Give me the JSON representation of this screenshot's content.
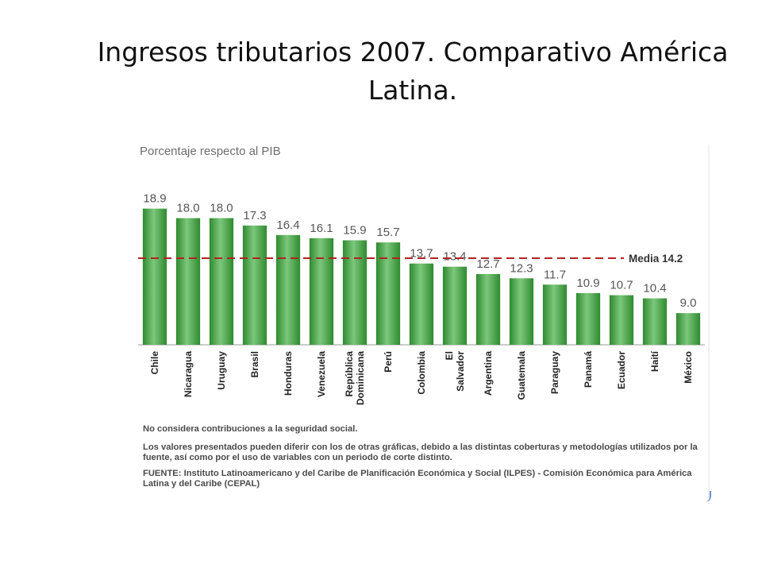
{
  "slide": {
    "title": "Ingresos tributarios 2007. Comparativo América Latina."
  },
  "chart_data": {
    "type": "bar",
    "subtitle": "Porcentaje respecto al PIB",
    "categories": [
      "Chile",
      "Nicaragua",
      "Uruguay",
      "Brasil",
      "Honduras",
      "Venezuela",
      "República Dominicana",
      "Perú",
      "Colombia",
      "El Salvador",
      "Argentina",
      "Guatemala",
      "Paraguay",
      "Panamá",
      "Ecuador",
      "Haití",
      "México"
    ],
    "values": [
      18.9,
      18.0,
      18.0,
      17.3,
      16.4,
      16.1,
      15.9,
      15.7,
      13.7,
      13.4,
      12.7,
      12.3,
      11.7,
      10.9,
      10.7,
      10.4,
      9.0
    ],
    "value_labels": [
      "18.9",
      "18.0",
      "18.0",
      "17.3",
      "16.4",
      "16.1",
      "15.9",
      "15.7",
      "13.7",
      "13.4",
      "12.7",
      "12.3",
      "11.7",
      "10.9",
      "10.7",
      "10.4",
      "9.0"
    ],
    "reference_line": {
      "label": "Media 14.2",
      "value": 14.2
    },
    "ylim": [
      6,
      20
    ],
    "grid": false,
    "legend": "none",
    "colors": {
      "bar": "#3d9a3d",
      "bar_light": "#72c072",
      "reference": "#b22222"
    },
    "notes": [
      "No considera contribuciones a la seguridad social.",
      "Los valores presentados pueden diferir con los de otras gráficas, debido a las distintas coberturas y metodologías utilizados por la fuente, así como por el uso de variables con un periodo de corte distinto.",
      "FUENTE: Instituto Latinoamericano y del Caribe de Planificación Económica y Social (ILPES) - Comisión Económica para América Latina y del Caribe (CEPAL)"
    ]
  }
}
